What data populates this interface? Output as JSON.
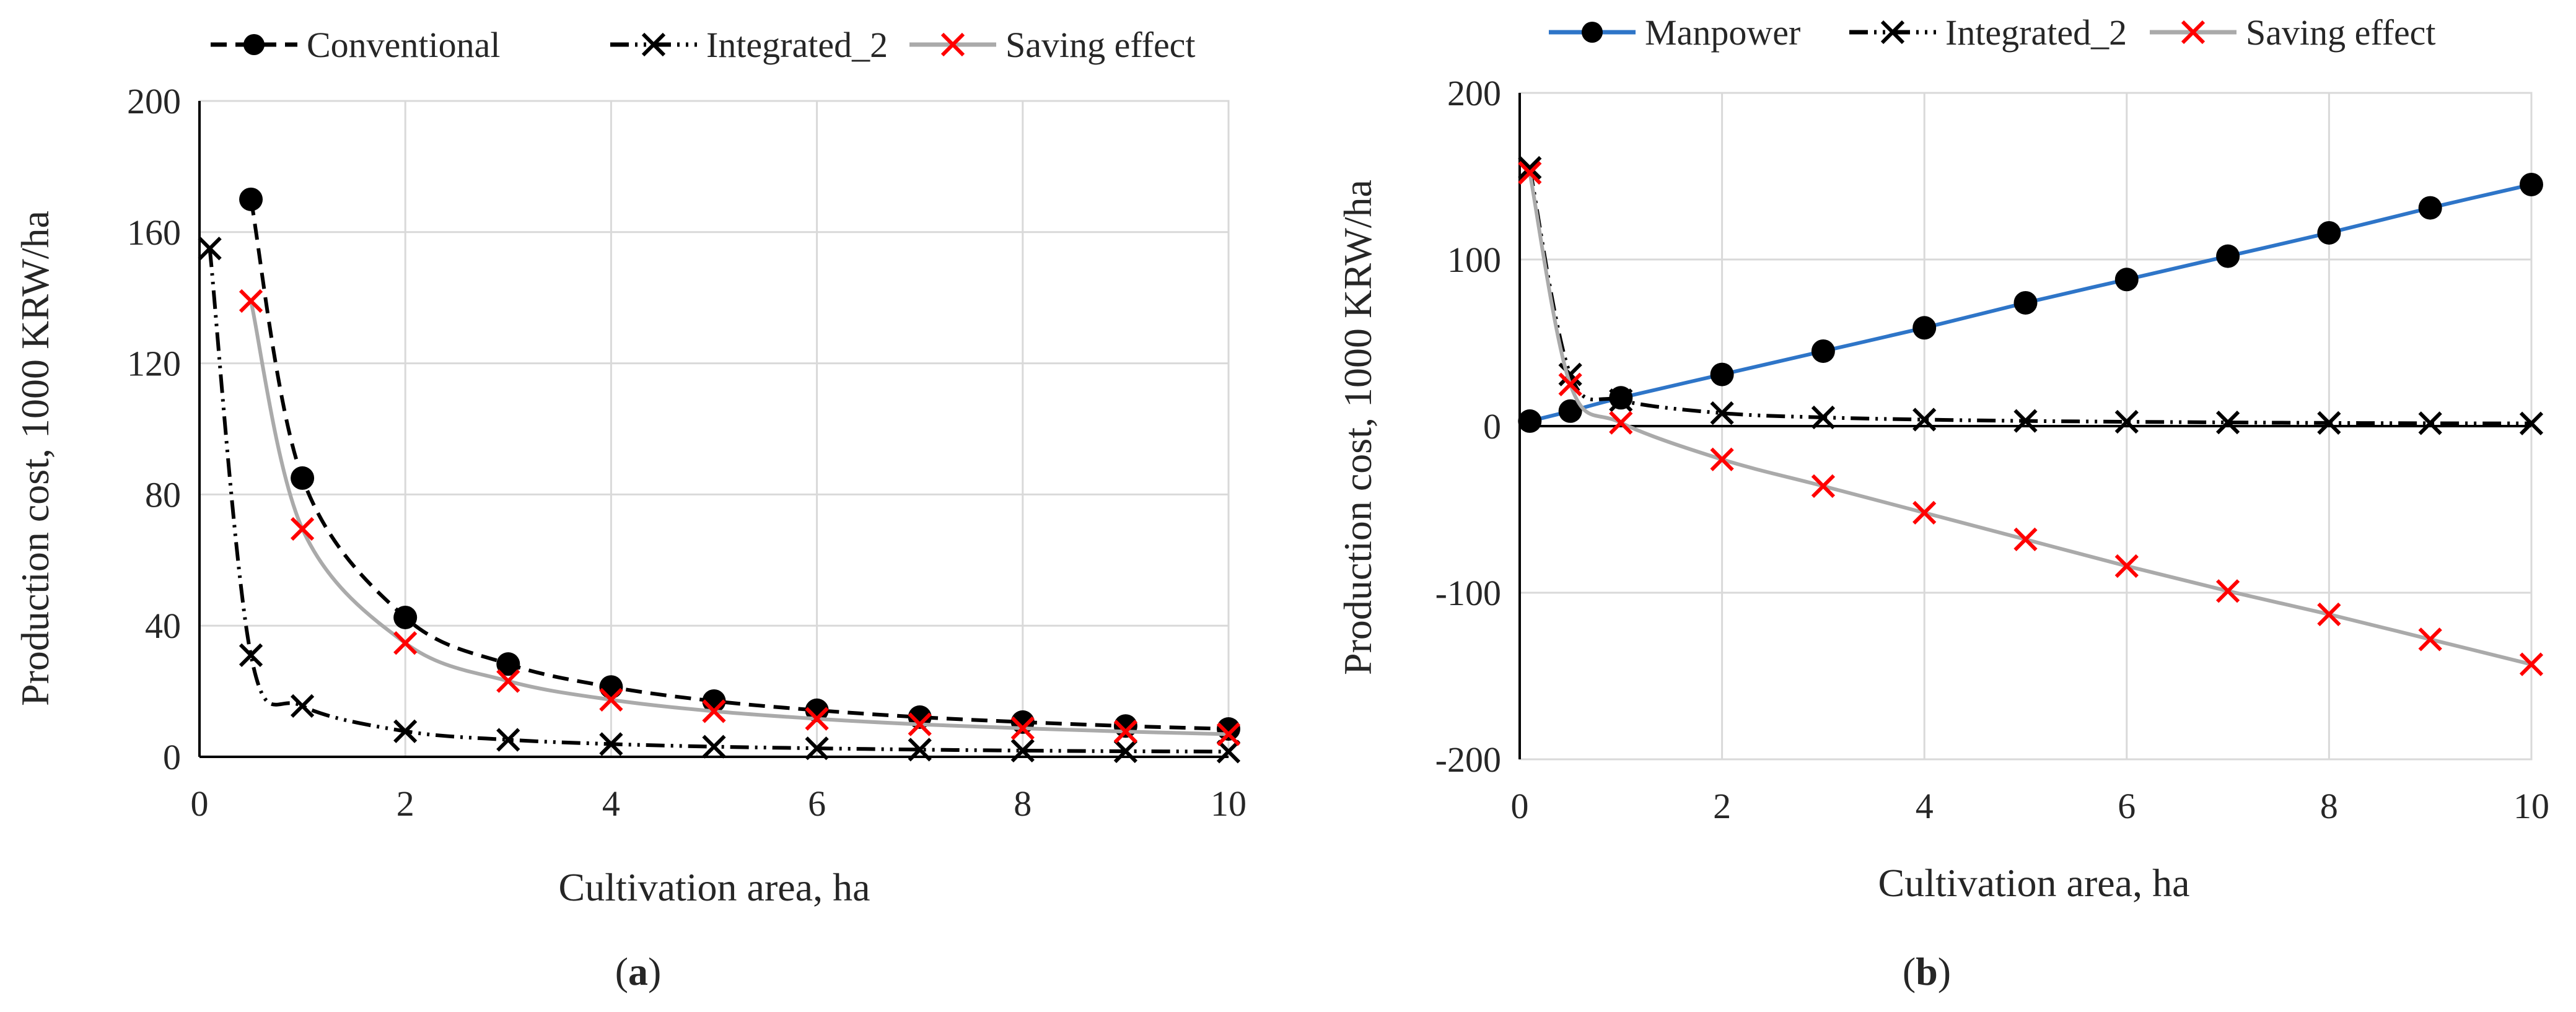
{
  "chart_data": [
    {
      "type": "line",
      "panel_label": "(a)",
      "panel_letter": "a",
      "xlabel": "Cultivation area, ha",
      "ylabel": "Production cost, 1000 KRW/ha",
      "xlim": [
        0,
        10
      ],
      "ylim": [
        0,
        200
      ],
      "xticks": [
        0,
        2,
        4,
        6,
        8,
        10
      ],
      "yticks": [
        0,
        40,
        80,
        120,
        160,
        200
      ],
      "grid": true,
      "legend_position": "top",
      "series": [
        {
          "name": "Conventional",
          "style": "dashed",
          "marker": "circle",
          "color": "#000000",
          "x": [
            0.5,
            1,
            2,
            3,
            4,
            5,
            6,
            7,
            8,
            9,
            10
          ],
          "y": [
            170,
            85,
            42.5,
            28.3,
            21.3,
            17,
            14.2,
            12.1,
            10.6,
            9.4,
            8.5
          ]
        },
        {
          "name": "Integrated_2",
          "style": "dash-dot-dot",
          "marker": "x",
          "color": "#000000",
          "x": [
            0.1,
            0.5,
            1,
            2,
            3,
            4,
            5,
            6,
            7,
            8,
            9,
            10
          ],
          "y": [
            155,
            31,
            15.5,
            7.8,
            5.2,
            3.9,
            3.1,
            2.6,
            2.2,
            1.9,
            1.7,
            1.6
          ]
        },
        {
          "name": "Saving effect",
          "style": "solid",
          "marker": "x",
          "color": "#aaaaaa",
          "marker_color": "#ff0000",
          "x": [
            0.5,
            1,
            2,
            3,
            4,
            5,
            6,
            7,
            8,
            9,
            10
          ],
          "y": [
            139,
            69.5,
            34.7,
            23.1,
            17.4,
            13.9,
            11.6,
            9.9,
            8.7,
            7.7,
            6.9
          ]
        }
      ]
    },
    {
      "type": "line",
      "panel_label": "(b)",
      "panel_letter": "b",
      "xlabel": "Cultivation area, ha",
      "ylabel": "Production cost, 1000 KRW/ha",
      "xlim": [
        0,
        10
      ],
      "ylim": [
        -200,
        200
      ],
      "xticks": [
        0,
        2,
        4,
        6,
        8,
        10
      ],
      "yticks": [
        -200,
        -100,
        0,
        100,
        200
      ],
      "grid": true,
      "legend_position": "top",
      "series": [
        {
          "name": "Manpower",
          "style": "solid",
          "marker": "circle",
          "color": "#2e75c8",
          "marker_color": "#000000",
          "x": [
            0.1,
            0.5,
            1,
            2,
            3,
            4,
            5,
            6,
            7,
            8,
            9,
            10
          ],
          "y": [
            3,
            9,
            17,
            31,
            45,
            59,
            74,
            88,
            102,
            116,
            131,
            145
          ]
        },
        {
          "name": "Integrated_2",
          "style": "dash-dot-dot",
          "marker": "x",
          "color": "#000000",
          "x": [
            0.1,
            0.5,
            1,
            2,
            3,
            4,
            5,
            6,
            7,
            8,
            9,
            10
          ],
          "y": [
            155,
            31,
            15.5,
            7.8,
            5.2,
            3.9,
            3.1,
            2.6,
            2.2,
            1.9,
            1.7,
            1.6
          ]
        },
        {
          "name": "Saving effect",
          "style": "solid",
          "marker": "x",
          "color": "#aaaaaa",
          "marker_color": "#ff0000",
          "x": [
            0.1,
            0.5,
            1,
            2,
            3,
            4,
            5,
            6,
            7,
            8,
            9,
            10
          ],
          "y": [
            152,
            25,
            2,
            -20,
            -36,
            -52,
            -68,
            -84,
            -99,
            -113,
            -128,
            -143
          ]
        }
      ]
    }
  ]
}
